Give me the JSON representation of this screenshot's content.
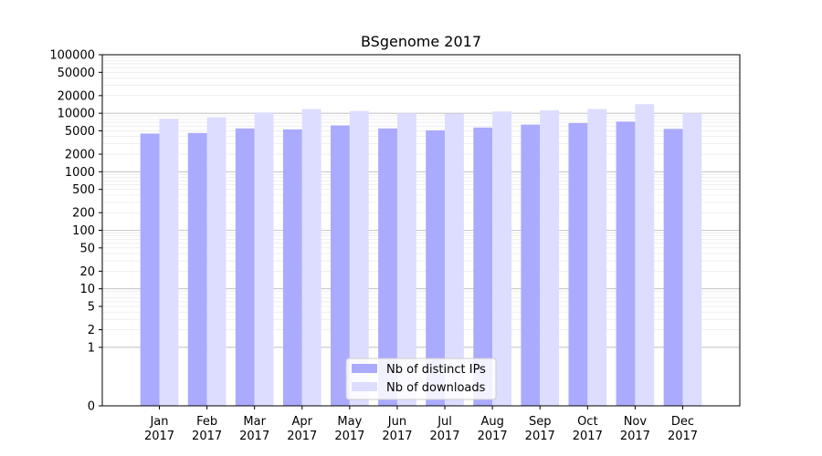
{
  "chart_data": {
    "type": "bar",
    "title": "BSgenome 2017",
    "xlabel": "",
    "ylabel": "",
    "y_scale": "symlog",
    "grid": true,
    "legend_position": "lower-center",
    "categories": [
      [
        "Jan",
        "2017"
      ],
      [
        "Feb",
        "2017"
      ],
      [
        "Mar",
        "2017"
      ],
      [
        "Apr",
        "2017"
      ],
      [
        "May",
        "2017"
      ],
      [
        "Jun",
        "2017"
      ],
      [
        "Jul",
        "2017"
      ],
      [
        "Aug",
        "2017"
      ],
      [
        "Sep",
        "2017"
      ],
      [
        "Oct",
        "2017"
      ],
      [
        "Nov",
        "2017"
      ],
      [
        "Dec",
        "2017"
      ]
    ],
    "series": [
      {
        "name": "Nb of distinct IPs",
        "color": "#aaaaff",
        "values": [
          4500,
          4600,
          5500,
          5300,
          6200,
          5500,
          5100,
          5700,
          6400,
          6800,
          7200,
          5400
        ]
      },
      {
        "name": "Nb of downloads",
        "color": "#ddddff",
        "values": [
          8000,
          8500,
          10300,
          11800,
          10900,
          10000,
          9900,
          10700,
          11200,
          11800,
          14300,
          10000
        ]
      }
    ],
    "yticks": [
      {
        "value": 0,
        "label": "0"
      },
      {
        "value": 1,
        "label": "1"
      },
      {
        "value": 2,
        "label": "2"
      },
      {
        "value": 5,
        "label": "5"
      },
      {
        "value": 10,
        "label": "10"
      },
      {
        "value": 20,
        "label": "20"
      },
      {
        "value": 50,
        "label": "50"
      },
      {
        "value": 100,
        "label": "100"
      },
      {
        "value": 200,
        "label": "200"
      },
      {
        "value": 500,
        "label": "500"
      },
      {
        "value": 1000,
        "label": "1000"
      },
      {
        "value": 2000,
        "label": "2000"
      },
      {
        "value": 5000,
        "label": "5000"
      },
      {
        "value": 10000,
        "label": "10000"
      },
      {
        "value": 20000,
        "label": "20000"
      },
      {
        "value": 50000,
        "label": "50000"
      },
      {
        "value": 100000,
        "label": "100000"
      }
    ],
    "ylim": [
      0,
      100000
    ]
  }
}
